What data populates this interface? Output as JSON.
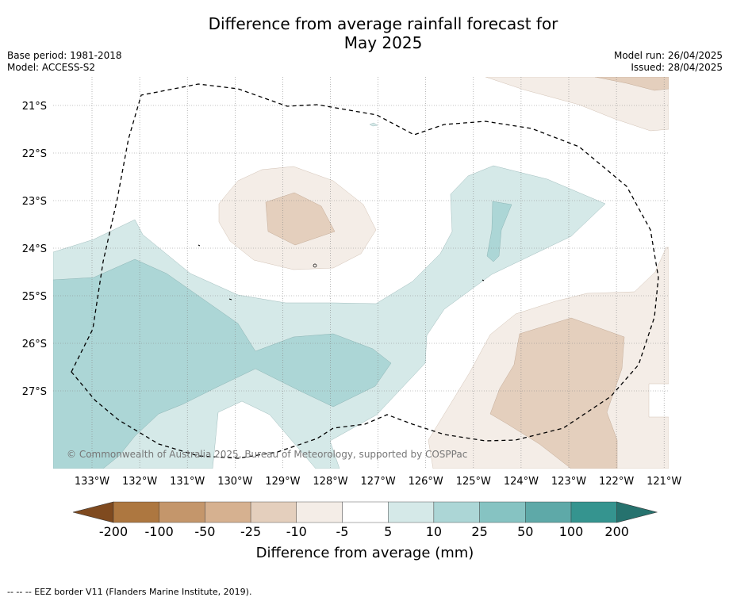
{
  "title_line1": "Difference from average rainfall forecast for",
  "title_line2": "May 2025",
  "base_period": "Base period: 1981-2018",
  "model": "Model: ACCESS-S2",
  "model_run": "Model run: 26/04/2025",
  "issued": "Issued: 28/04/2025",
  "lat_labels": [
    "21°S",
    "22°S",
    "23°S",
    "24°S",
    "25°S",
    "26°S",
    "27°S"
  ],
  "lon_labels": [
    "133°W",
    "132°W",
    "131°W",
    "130°W",
    "129°W",
    "128°W",
    "127°W",
    "126°W",
    "125°W",
    "124°W",
    "123°W",
    "122°W",
    "121°W"
  ],
  "copyright": "© Commonwealth of Australia 2025, Bureau of Meteorology, supported by COSPPac",
  "colorbar": {
    "ticks": [
      "-200",
      "-100",
      "-50",
      "-25",
      "-10",
      "-5",
      "5",
      "10",
      "25",
      "50",
      "100",
      "200"
    ],
    "colors": [
      "#7f4a1f",
      "#ad7740",
      "#c4966b",
      "#d6b190",
      "#e4cfbd",
      "#f4ede7",
      "#ffffff",
      "#d5e9e8",
      "#acd6d6",
      "#86c3c2",
      "#5ea9a8",
      "#35948f",
      "#26726e"
    ],
    "label": "Difference from average (mm)"
  },
  "footnote": "-- -- -- EEZ border V11 (Flanders Marine Institute, 2019)."
}
